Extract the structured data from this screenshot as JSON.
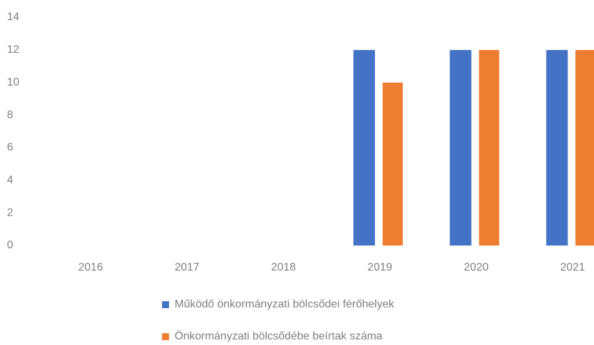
{
  "chart_data": {
    "type": "bar",
    "categories": [
      "2016",
      "2017",
      "2018",
      "2019",
      "2020",
      "2021"
    ],
    "series": [
      {
        "name": "Működő önkormányzati bölcsődei férőhelyek",
        "color": "#4472c4",
        "values": [
          0,
          0,
          0,
          12,
          12,
          12
        ]
      },
      {
        "name": "Önkormányzati bölcsődébe beírtak száma",
        "color": "#ed7d31",
        "values": [
          0,
          0,
          0,
          10,
          12,
          12
        ]
      }
    ],
    "ylim": [
      0,
      14
    ],
    "yticks": [
      0,
      2,
      4,
      6,
      8,
      10,
      12,
      14
    ],
    "grid": false,
    "legend": "bottom"
  }
}
